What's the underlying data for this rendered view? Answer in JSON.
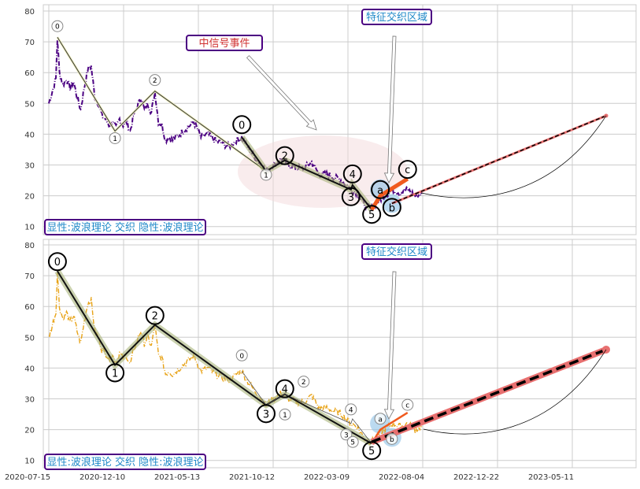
{
  "chart_data": [
    {
      "type": "line",
      "panel": "top",
      "series_color": "#4b0082",
      "ylim": [
        8,
        82
      ],
      "yticks": [
        10,
        20,
        30,
        40,
        50,
        60,
        70,
        80
      ],
      "grid": true,
      "annotation_primary": {
        "labels": [
          "0",
          "1",
          "2"
        ],
        "days": [
          17,
          131,
          210
        ],
        "values": [
          71.5,
          41,
          54
        ]
      },
      "annotation_secondary": {
        "labels": [
          "0",
          "1",
          "2",
          "3",
          "4",
          "5"
        ],
        "days": [
          382,
          430,
          467,
          598,
          601,
          639
        ],
        "values": [
          39,
          28,
          31.5,
          22,
          23.5,
          15.5
        ]
      },
      "abc": {
        "labels": [
          "a",
          "b",
          "c"
        ],
        "days": [
          656,
          679,
          710
        ],
        "values": [
          22,
          17.5,
          25.5
        ]
      },
      "projection": {
        "from_day": 679,
        "from_value": 17.5,
        "to_day": 1103,
        "to_value": 46
      },
      "signal_label": "中信号事件",
      "region_label": "特征交织区域",
      "legend_label": "显性:波浪理论 交织 隐性:波浪理论"
    },
    {
      "type": "line",
      "panel": "bottom",
      "series_color": "#e8a317",
      "ylim": [
        8,
        82
      ],
      "yticks": [
        10,
        20,
        30,
        40,
        50,
        60,
        70,
        80
      ],
      "grid": true,
      "annotation_primary": {
        "labels": [
          "0",
          "1",
          "2",
          "3",
          "4",
          "5"
        ],
        "days": [
          17,
          131,
          210,
          430,
          467,
          639
        ],
        "values": [
          71.5,
          41,
          54,
          28,
          31.5,
          15.5
        ]
      },
      "annotation_secondary": {
        "labels": [
          "0",
          "1",
          "2",
          "3",
          "4",
          "5"
        ],
        "days": [
          382,
          430,
          467,
          598,
          601,
          639
        ],
        "values": [
          39,
          28,
          31.5,
          22,
          23.5,
          15.5
        ]
      },
      "abc": {
        "labels": [
          "a",
          "b",
          "c"
        ],
        "days": [
          656,
          679,
          710
        ],
        "values": [
          22,
          17.5,
          25.5
        ]
      },
      "projection": {
        "from_day": 639,
        "from_value": 16,
        "to_day": 1103,
        "to_value": 46
      },
      "region_label": "特征交织区域",
      "legend_label": "显性:波浪理论 交织 隐性:波浪理论"
    }
  ],
  "price_series": {
    "days": [
      0,
      7,
      14,
      17,
      21,
      28,
      35,
      42,
      49,
      56,
      63,
      70,
      77,
      84,
      91,
      98,
      105,
      112,
      119,
      126,
      133,
      140,
      147,
      154,
      161,
      168,
      175,
      182,
      189,
      196,
      203,
      210,
      217,
      224,
      231,
      238,
      245,
      259,
      273,
      287,
      301,
      315,
      329,
      343,
      357,
      371,
      382,
      392,
      406,
      420,
      430,
      445,
      460,
      475,
      490,
      505,
      520,
      535,
      550,
      565,
      580,
      598,
      610,
      625,
      639,
      650,
      665,
      680,
      695,
      710,
      725,
      740
    ],
    "values": [
      50,
      54,
      58,
      71,
      60,
      56,
      58,
      55,
      57,
      52,
      48,
      55,
      61,
      62,
      52,
      50,
      46,
      45,
      43,
      44,
      42,
      45,
      43,
      44,
      41,
      46,
      49,
      52,
      48,
      50,
      47,
      54,
      44,
      43,
      38,
      39,
      38,
      40,
      42,
      44,
      39,
      40,
      38,
      37,
      36,
      38,
      39,
      36,
      33,
      30,
      28,
      30,
      32,
      30,
      29,
      29,
      31,
      27,
      27,
      26,
      25,
      22,
      21,
      17,
      16,
      18,
      20,
      22,
      21,
      22,
      20,
      21
    ]
  },
  "x_axis": {
    "tick_labels": [
      "2020-07-15",
      "2020-12-10",
      "2021-05-13",
      "2021-10-12",
      "2022-03-09",
      "2022-08-04",
      "2022-12-22",
      "2023-05-11"
    ],
    "tick_days": [
      0,
      148,
      296,
      444,
      592,
      740,
      888,
      1036
    ]
  }
}
